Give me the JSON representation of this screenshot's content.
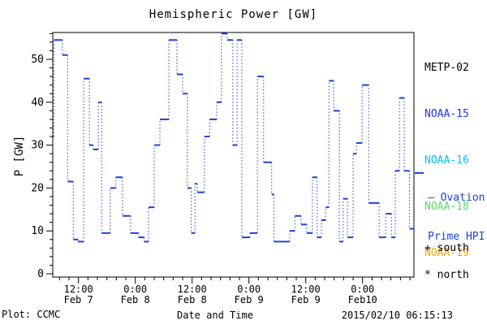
{
  "title": "Hemispheric Power [GW]",
  "ylabel": "P [GW]",
  "footer": {
    "plot_credit": "Plot: CCMC",
    "xlabel": "Date and Time",
    "timestamp": "2015/02/10 06:15:13"
  },
  "legend": {
    "satellites": [
      {
        "label": "METP-02",
        "color": "#000000"
      },
      {
        "label": "NOAA-15",
        "color": "#2233ee"
      },
      {
        "label": "NOAA-16",
        "color": "#00bfee"
      },
      {
        "label": "NOAA-18",
        "color": "#55dd66"
      },
      {
        "label": "NOAA-19",
        "color": "#ffa500"
      }
    ],
    "ovation": {
      "line1": "— Ovation",
      "line2": "Prime HPI",
      "color": "#1c43d7"
    },
    "south": "+ south",
    "north": "* north"
  },
  "chart_data": {
    "type": "line",
    "style": "steps",
    "title": "Hemispheric Power [GW]",
    "xlabel": "Date and Time",
    "ylabel": "P [GW]",
    "grid": false,
    "line_color": "#1c43d7",
    "frame_color": "#000000",
    "x_unit": "hours since 2015-02-07 00:00 UT",
    "xlim": [
      6.57,
      82.85
    ],
    "ylim": [
      0,
      56.25
    ],
    "y_major_ticks": [
      0,
      10,
      20,
      30,
      40,
      50
    ],
    "y_minor_step": 2,
    "x_minor_step_hours": 2,
    "x_major_ticks": [
      {
        "hours": 12,
        "time": "12:00",
        "date": "Feb 7"
      },
      {
        "hours": 24,
        "time": "0:00",
        "date": "Feb 8"
      },
      {
        "hours": 36,
        "time": "12:00",
        "date": "Feb 8"
      },
      {
        "hours": 48,
        "time": "0:00",
        "date": "Feb 9"
      },
      {
        "hours": 60,
        "time": "12:00",
        "date": "Feb 9"
      },
      {
        "hours": 72,
        "time": "0:00",
        "date": "Feb10"
      }
    ],
    "end_tick_gw": 23.5,
    "series_name": "Ovation Prime HPI",
    "steps_format": "[start_hours, hemispheric_power_GW]",
    "steps": [
      [
        6.6,
        32
      ],
      [
        6.8,
        54.5
      ],
      [
        8.6,
        51
      ],
      [
        9.7,
        21.5
      ],
      [
        10.9,
        8
      ],
      [
        11.9,
        7.5
      ],
      [
        13.1,
        45.5
      ],
      [
        14.3,
        30
      ],
      [
        15.1,
        29
      ],
      [
        16.2,
        40
      ],
      [
        16.9,
        9.5
      ],
      [
        18.7,
        20
      ],
      [
        19.9,
        22.5
      ],
      [
        21.3,
        13.5
      ],
      [
        23.0,
        9.5
      ],
      [
        24.7,
        8.5
      ],
      [
        25.9,
        7.5
      ],
      [
        26.8,
        15.5
      ],
      [
        28.0,
        30
      ],
      [
        29.2,
        36
      ],
      [
        31.1,
        54.5
      ],
      [
        32.8,
        46.5
      ],
      [
        34.0,
        42
      ],
      [
        35.0,
        20
      ],
      [
        35.8,
        9.5
      ],
      [
        36.6,
        21
      ],
      [
        37.1,
        19
      ],
      [
        38.6,
        32
      ],
      [
        39.7,
        36
      ],
      [
        41.2,
        40
      ],
      [
        42.2,
        56
      ],
      [
        43.4,
        54.5
      ],
      [
        44.6,
        30
      ],
      [
        45.5,
        54.5
      ],
      [
        46.5,
        8.5
      ],
      [
        48.2,
        9.5
      ],
      [
        49.8,
        46
      ],
      [
        51.1,
        26
      ],
      [
        52.8,
        18.5
      ],
      [
        53.3,
        7.5
      ],
      [
        56.6,
        10
      ],
      [
        57.7,
        13.5
      ],
      [
        59.0,
        11.5
      ],
      [
        60.2,
        9.5
      ],
      [
        61.4,
        22.5
      ],
      [
        62.4,
        8.5
      ],
      [
        63.3,
        12.5
      ],
      [
        64.2,
        15.5
      ],
      [
        64.9,
        45
      ],
      [
        65.9,
        38
      ],
      [
        67.1,
        7.5
      ],
      [
        67.9,
        17.5
      ],
      [
        68.8,
        8.5
      ],
      [
        70.0,
        28
      ],
      [
        70.7,
        30.5
      ],
      [
        71.9,
        44
      ],
      [
        73.3,
        16.5
      ],
      [
        75.5,
        8.5
      ],
      [
        76.9,
        14
      ],
      [
        78.1,
        8.5
      ],
      [
        78.9,
        24
      ],
      [
        79.8,
        41
      ],
      [
        80.8,
        24
      ],
      [
        81.9,
        10.5
      ]
    ]
  }
}
